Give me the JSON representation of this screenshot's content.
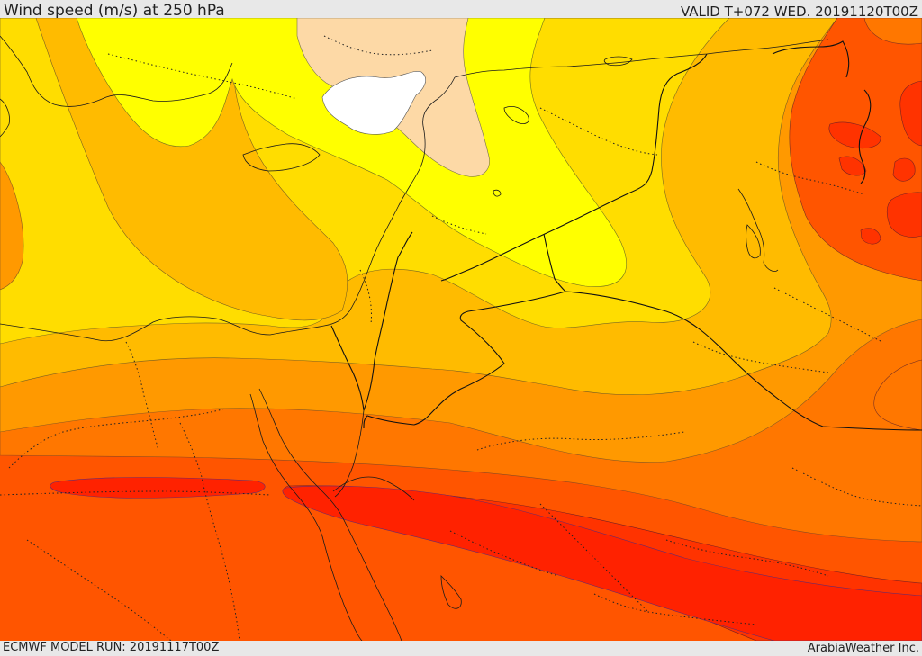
{
  "header": {
    "title": "Wind speed (m/s) at 250 hPa",
    "valid": "VALID T+072 WED. 20191120T00Z"
  },
  "footer": {
    "model_run": "ECMWF MODEL RUN: 20191117T00Z",
    "brand": "ArabiaWeather Inc."
  },
  "colors": {
    "very_light": "#fdd9a6",
    "calm": "#ffffff",
    "yellow": "#ffff00",
    "gold": "#ffdd00",
    "amber": "#ffbb00",
    "orange": "#ff9900",
    "dark_orange": "#ff7700",
    "red_orange": "#ff5500",
    "red": "#ff3300",
    "deep_red": "#ff2200",
    "border": "#111111"
  }
}
